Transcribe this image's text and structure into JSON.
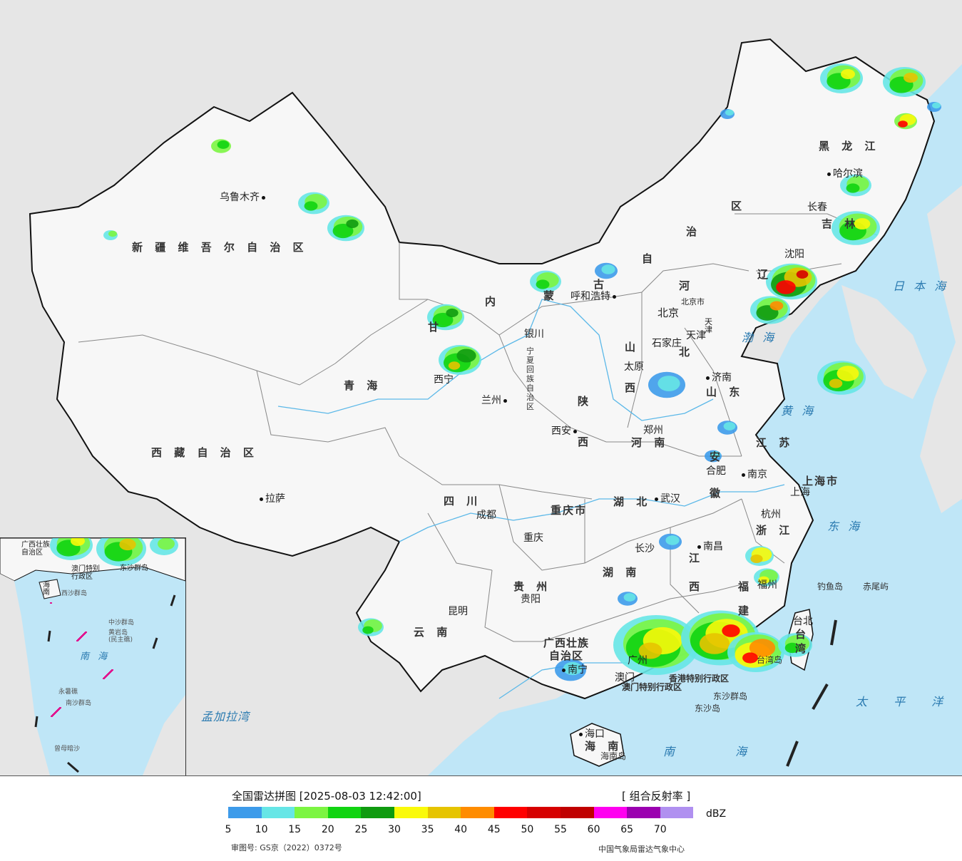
{
  "header": {
    "title": "全国雷达拼图 [2025-08-03 12:42:00]",
    "product": "[ 组合反射率 ]"
  },
  "legend": {
    "unit": "dBZ",
    "colors": [
      "#3d9bea",
      "#66e6e6",
      "#7cf542",
      "#11d411",
      "#0f9b0f",
      "#fafa0a",
      "#e6c400",
      "#ff8c00",
      "#ff0000",
      "#d60000",
      "#c00000",
      "#ff00f0",
      "#9b00b0",
      "#b090f0"
    ],
    "ticks": [
      "5",
      "10",
      "15",
      "20",
      "25",
      "30",
      "35",
      "40",
      "45",
      "50",
      "55",
      "60",
      "65",
      "70"
    ]
  },
  "footer": {
    "review_number": "审图号: GS京（2022）0372号",
    "agency": "中国气象局雷达气象中心"
  },
  "map": {
    "regions": {
      "xinjiang": "新 疆 维 吾 尔 自 治 区",
      "xizang": "西 藏 自 治 区",
      "qinghai": "青 海",
      "gansu": "甘",
      "neimenggu_nei": "内",
      "neimenggu_meng": "蒙",
      "neimenggu_gu": "古",
      "neimenggu_zi": "自",
      "neimenggu_zhi": "治",
      "neimenggu_qu": "区",
      "heilongjiang": "黑 龙 江",
      "jilin": "吉 林",
      "liaoning": "辽",
      "hebei_he": "河",
      "hebei_bei": "北",
      "shanxi1": "山",
      "shanxi2": "西",
      "shandong": "山 东",
      "henan": "河 南",
      "shaanxi1": "陕",
      "shaanxi2": "西",
      "ningxia": "宁夏回族自治区",
      "sichuan": "四 川",
      "chongqing": "重庆市",
      "hubei": "湖 北",
      "anhui1": "安",
      "anhui2": "徽",
      "jiangsu": "江 苏",
      "zhejiang": "浙 江",
      "jiangxi1": "江",
      "jiangxi2": "西",
      "hunan": "湖 南",
      "guizhou": "贵 州",
      "yunnan": "云 南",
      "guangxi": "广西壮族\n自治区",
      "fujian1": "福",
      "fujian2": "建",
      "taiwan": "台湾",
      "hainan": "海 南",
      "shanghai": "上海市",
      "tianjin": "天津",
      "hongkong": "香港特别行政区",
      "macau": "澳门特别行政区"
    },
    "cities": {
      "urumqi": "乌鲁木齐",
      "lhasa": "拉萨",
      "xining": "西宁",
      "lanzhou": "兰州",
      "yinchuan": "银川",
      "hohhot": "呼和浩特",
      "beijing": "北京",
      "tianjin": "天津",
      "shijiazhuang": "石家庄",
      "taiyuan": "太原",
      "jinan": "济南",
      "zhengzhou": "郑州",
      "xian": "西安",
      "chengdu": "成都",
      "chongqing": "重庆",
      "wuhan": "武汉",
      "hefei": "合肥",
      "nanjing": "南京",
      "shanghai": "上海",
      "hangzhou": "杭州",
      "nanchang": "南昌",
      "changsha": "长沙",
      "guiyang": "贵阳",
      "kunming": "昆明",
      "nanning": "南宁",
      "guangzhou": "广州",
      "fuzhou": "福州",
      "taipei": "台北",
      "haikou": "海口",
      "macau": "澳门",
      "harbin": "哈尔滨",
      "changchun": "长春",
      "shenyang": "沈阳",
      "beijing_small": "北京市"
    },
    "seas": {
      "bohai": "渤 海",
      "yellow": "黄 海",
      "east": "东 海",
      "south": "南 海",
      "japan": "日 本 海",
      "pacific": "太 平 洋",
      "bengal": "孟加拉湾"
    },
    "islands": {
      "diaoyu": "钓鱼岛",
      "chiwei": "赤尾屿",
      "dongsha_qundao": "东沙群岛",
      "dongsha_dao": "东沙岛",
      "taiwan_dao": "台湾岛",
      "hainan_dao": "海南岛"
    },
    "inset": {
      "guangxi": "广西壮族\n自治区",
      "hk_macau": "澳门特别\n行政区",
      "dongsha": "东沙群岛",
      "hainan": "海南",
      "xisha": "西沙群岛",
      "zhongsha": "中沙群岛",
      "huangyan": "黄岩岛\n(民主礁)",
      "nanhai": "南 海",
      "yongshu": "永暑礁",
      "nansha": "南沙群岛",
      "zengmu": "曾母暗沙"
    }
  }
}
